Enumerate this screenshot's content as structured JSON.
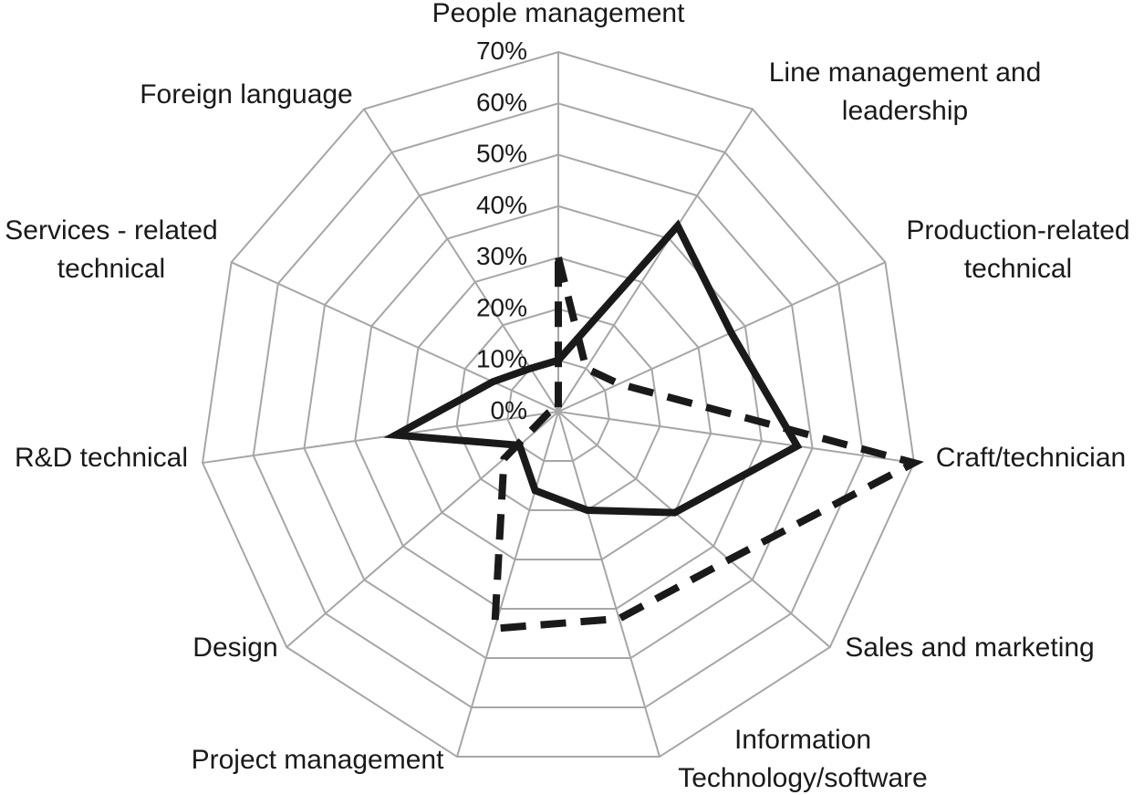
{
  "chart_data": {
    "type": "radar",
    "categories": [
      "People management",
      "Line management and leadership",
      "Production-related technical",
      "Craft/technician",
      "Sales and marketing",
      "Information Technology/software",
      "Project management",
      "Design",
      "R&D technical",
      "Services - related technical",
      "Foreign language"
    ],
    "category_lines": [
      [
        "People management"
      ],
      [
        "Line management and",
        "leadership"
      ],
      [
        "Production-related",
        "technical"
      ],
      [
        "Craft/technician"
      ],
      [
        "Sales and marketing"
      ],
      [
        "Information",
        "Technology/software"
      ],
      [
        "Project management"
      ],
      [
        "Design"
      ],
      [
        "R&D technical"
      ],
      [
        "Services - related",
        "technical"
      ],
      [
        "Foreign language"
      ]
    ],
    "axis": {
      "min": 0,
      "max": 70,
      "step": 10,
      "tick_labels": [
        "0%",
        "10%",
        "20%",
        "30%",
        "40%",
        "50%",
        "60%",
        "70%"
      ]
    },
    "series": [
      {
        "style": "solid",
        "values": [
          10,
          43,
          37,
          47,
          30,
          20,
          16,
          10,
          32,
          14,
          10
        ]
      },
      {
        "style": "dashed",
        "values": [
          30,
          10,
          13,
          70,
          44,
          42,
          44,
          14,
          2,
          1,
          0
        ]
      }
    ],
    "grid": true,
    "legend": "none"
  }
}
